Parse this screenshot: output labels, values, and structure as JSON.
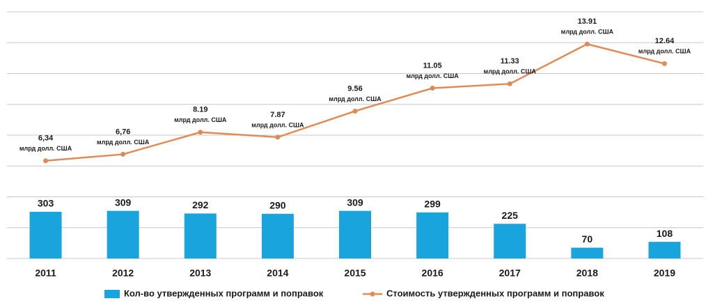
{
  "chart_data": {
    "type": "bar_line",
    "categories": [
      "2011",
      "2012",
      "2013",
      "2014",
      "2015",
      "2016",
      "2017",
      "2018",
      "2019"
    ],
    "series": [
      {
        "name": "Кол-во утвержденных программ и поправок",
        "type": "bar",
        "color": "#1aa4dd",
        "values": [
          303,
          309,
          292,
          290,
          309,
          299,
          225,
          70,
          108
        ]
      },
      {
        "name": "Стоимость утвержденных программ и поправок",
        "type": "line",
        "axis": "y2",
        "color": "#df8b55",
        "values": [
          6.34,
          6.76,
          8.19,
          7.87,
          9.56,
          11.05,
          11.33,
          13.91,
          12.64
        ],
        "value_labels": [
          "6,34",
          "6,76",
          "8.19",
          "7.87",
          "9.56",
          "11.05",
          "11.33",
          "13.91",
          "12.64"
        ],
        "value_unit": "млрд долл. США"
      }
    ],
    "ylim": [
      0,
      1600
    ],
    "yticks": [
      0,
      200,
      400,
      600,
      800,
      1000,
      1200,
      1400,
      1600
    ],
    "y2lim": [
      0,
      16
    ],
    "grid": true,
    "legend": "bottom"
  }
}
